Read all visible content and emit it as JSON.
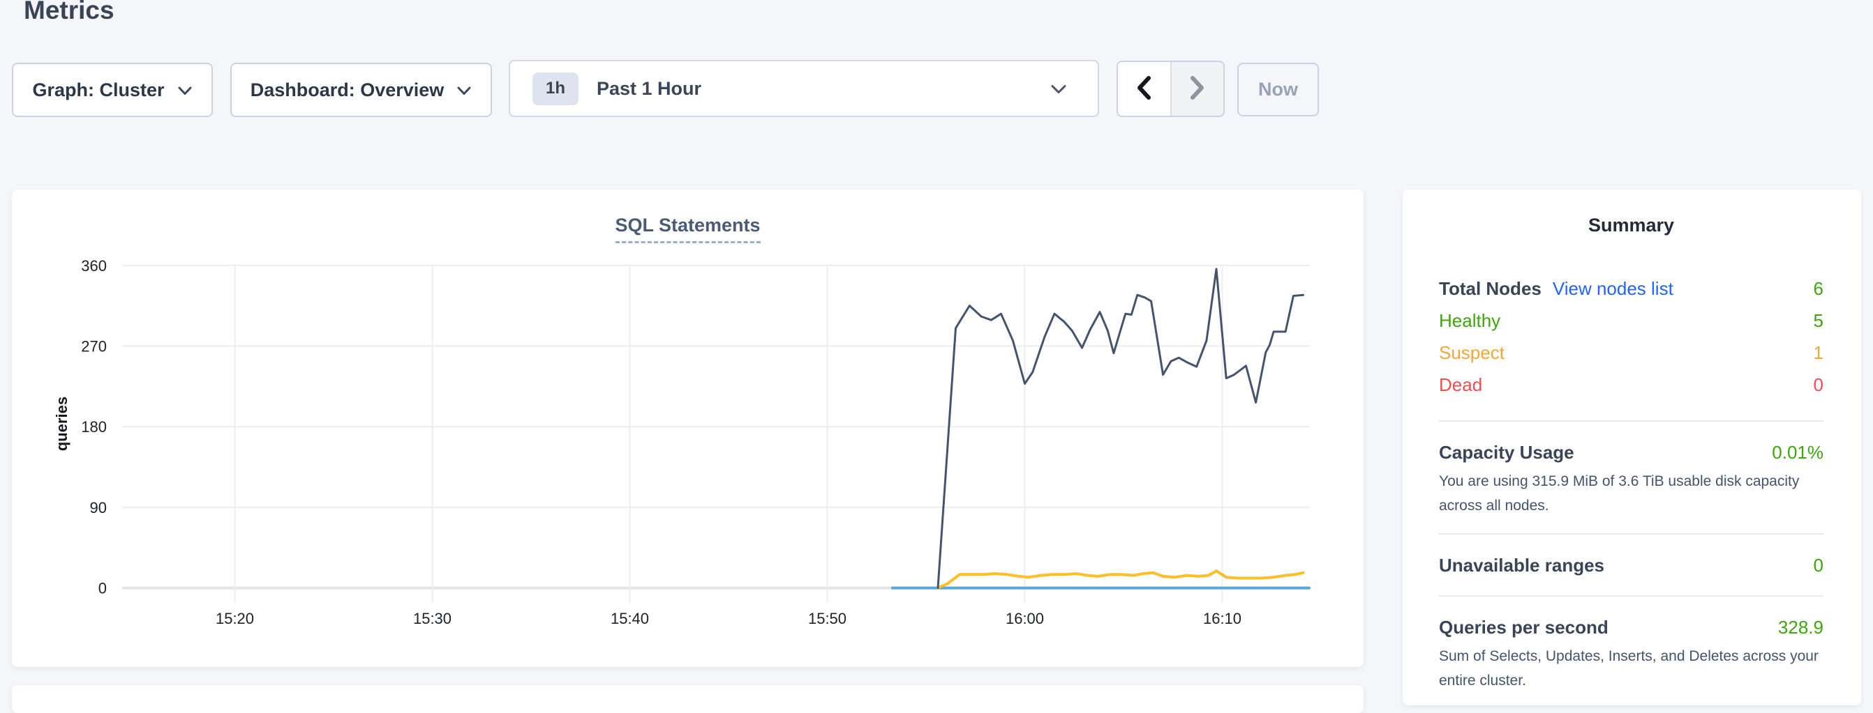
{
  "page": {
    "title": "Metrics"
  },
  "toolbar": {
    "graph_dropdown": {
      "label": "Graph: Cluster",
      "icon": "chevron-down-icon"
    },
    "dashboard_dropdown": {
      "label": "Dashboard: Overview",
      "icon": "chevron-down-icon"
    },
    "time_selector": {
      "badge": "1h",
      "label": "Past 1 Hour",
      "icon": "chevron-down-icon"
    },
    "prev_button_icon": "chevron-left-icon",
    "next_button_icon": "chevron-right-icon",
    "now_button": "Now"
  },
  "colors": {
    "page_background": "#f4f6fa",
    "link_blue": "#2264ff",
    "healthy_green": "#3ea50b",
    "suspect_orange": "#f7a536",
    "dead_red": "#ef4d50",
    "series_dark_blue": "#44546f",
    "series_yellow": "#fdbe27",
    "series_light_blue": "#5aa6d9"
  },
  "chart_data": {
    "type": "line",
    "title": "SQL Statements",
    "ylabel": "queries",
    "ylim": [
      0,
      360
    ],
    "x_range": [
      "15:15",
      "16:15"
    ],
    "x_unit": "minutes since 15:15",
    "grid": true,
    "legend": "none",
    "y_ticks": [
      360,
      270,
      180,
      90,
      0
    ],
    "x_ticks": [
      {
        "min": 5,
        "label": "15:20"
      },
      {
        "min": 15,
        "label": "15:30"
      },
      {
        "min": 25,
        "label": "15:40"
      },
      {
        "min": 35,
        "label": "15:50"
      },
      {
        "min": 45,
        "label": "16:00"
      },
      {
        "min": 55,
        "label": "16:10"
      }
    ],
    "series": [
      {
        "name": "light-blue-series",
        "color": "#5aa6d9",
        "width": 4,
        "points": [
          [
            38.3,
            0
          ],
          [
            59.4,
            0
          ]
        ]
      },
      {
        "name": "yellow-series",
        "color": "#fdbe27",
        "width": 4,
        "points": [
          [
            40.6,
            0
          ],
          [
            41.1,
            5
          ],
          [
            41.7,
            15
          ],
          [
            42.3,
            15
          ],
          [
            42.9,
            15
          ],
          [
            43.5,
            16
          ],
          [
            44.1,
            15
          ],
          [
            44.7,
            13
          ],
          [
            45.2,
            12
          ],
          [
            45.8,
            14
          ],
          [
            46.4,
            15
          ],
          [
            47.0,
            15
          ],
          [
            47.6,
            16
          ],
          [
            48.2,
            14
          ],
          [
            48.7,
            13
          ],
          [
            49.3,
            15
          ],
          [
            49.9,
            15
          ],
          [
            50.5,
            14
          ],
          [
            51.0,
            16
          ],
          [
            51.5,
            17
          ],
          [
            52.0,
            13
          ],
          [
            52.6,
            12
          ],
          [
            53.2,
            14
          ],
          [
            53.8,
            13
          ],
          [
            54.3,
            14
          ],
          [
            54.7,
            19
          ],
          [
            55.2,
            12
          ],
          [
            55.8,
            11
          ],
          [
            56.4,
            11
          ],
          [
            57.0,
            11
          ],
          [
            57.6,
            12
          ],
          [
            58.2,
            14
          ],
          [
            58.7,
            15
          ],
          [
            59.1,
            17
          ]
        ]
      },
      {
        "name": "dark-blue-series",
        "color": "#44546f",
        "width": 3,
        "points": [
          [
            40.6,
            0
          ],
          [
            41.5,
            290
          ],
          [
            42.2,
            315
          ],
          [
            42.8,
            303
          ],
          [
            43.3,
            299
          ],
          [
            43.8,
            306
          ],
          [
            44.4,
            276
          ],
          [
            45.0,
            228
          ],
          [
            45.4,
            241
          ],
          [
            46.0,
            280
          ],
          [
            46.5,
            306
          ],
          [
            47.0,
            297
          ],
          [
            47.4,
            287
          ],
          [
            47.9,
            268
          ],
          [
            48.3,
            288
          ],
          [
            48.8,
            308
          ],
          [
            49.2,
            287
          ],
          [
            49.5,
            262
          ],
          [
            49.8,
            284
          ],
          [
            50.1,
            306
          ],
          [
            50.4,
            305
          ],
          [
            50.7,
            327
          ],
          [
            51.1,
            324
          ],
          [
            51.4,
            320
          ],
          [
            52.0,
            238
          ],
          [
            52.4,
            253
          ],
          [
            52.8,
            257
          ],
          [
            53.2,
            252
          ],
          [
            53.7,
            247
          ],
          [
            54.2,
            276
          ],
          [
            54.7,
            356
          ],
          [
            55.2,
            234
          ],
          [
            55.6,
            238
          ],
          [
            56.2,
            248
          ],
          [
            56.7,
            207
          ],
          [
            57.2,
            263
          ],
          [
            57.4,
            271
          ],
          [
            57.6,
            286
          ],
          [
            58.2,
            286
          ],
          [
            58.6,
            326
          ],
          [
            59.1,
            327
          ]
        ]
      }
    ]
  },
  "summary": {
    "title": "Summary",
    "nodes": {
      "label": "Total Nodes",
      "link": "View nodes list",
      "value": "6"
    },
    "node_status_rows": [
      {
        "label": "Healthy",
        "value": "5",
        "status": "healthy"
      },
      {
        "label": "Suspect",
        "value": "1",
        "status": "suspect"
      },
      {
        "label": "Dead",
        "value": "0",
        "status": "dead"
      }
    ],
    "sections": [
      {
        "label": "Capacity Usage",
        "value": "0.01%",
        "description": "You are using 315.9 MiB of 3.6 TiB usable disk capacity across all nodes."
      },
      {
        "label": "Unavailable ranges",
        "value": "0",
        "description": ""
      },
      {
        "label": "Queries per second",
        "value": "328.9",
        "description": "Sum of Selects, Updates, Inserts, and Deletes across your entire cluster."
      }
    ]
  }
}
